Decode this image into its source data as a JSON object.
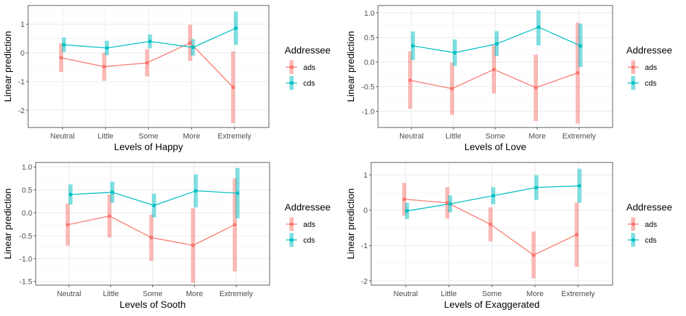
{
  "colors": {
    "ads": "#F8766D",
    "cds": "#00BFC4",
    "panel_border": "#333333",
    "grid_major": "#ebebeb",
    "grid_minor": "#f5f5f5"
  },
  "legend": {
    "title": "Addressee",
    "entries": [
      {
        "key": "ads",
        "label": "ads"
      },
      {
        "key": "cds",
        "label": "cds"
      }
    ]
  },
  "chart_data": [
    {
      "type": "line",
      "xlabel": "Levels of Happy",
      "ylabel": "Linear prediction",
      "categories": [
        "Neutral",
        "Little",
        "Some",
        "More",
        "Extremely"
      ],
      "ylim": [
        -2.6,
        1.65
      ],
      "yticks": [
        -2,
        -1,
        0,
        1
      ],
      "ytick_labels": [
        "-2",
        "-1",
        "0",
        "1"
      ],
      "grid": true,
      "legend_position": "right",
      "series": [
        {
          "name": "ads",
          "values": [
            -0.17,
            -0.48,
            -0.35,
            0.35,
            -1.2
          ],
          "ci_low": [
            -0.67,
            -0.97,
            -0.82,
            -0.28,
            -2.45
          ],
          "ci_high": [
            0.33,
            0.0,
            0.13,
            0.98,
            0.05
          ]
        },
        {
          "name": "cds",
          "values": [
            0.28,
            0.17,
            0.4,
            0.19,
            0.86
          ],
          "ci_low": [
            0.03,
            -0.08,
            0.16,
            -0.1,
            0.28
          ],
          "ci_high": [
            0.53,
            0.42,
            0.64,
            0.48,
            1.44
          ]
        }
      ]
    },
    {
      "type": "line",
      "xlabel": "Levels of Love",
      "ylabel": "Linear prediction",
      "categories": [
        "Neutral",
        "Little",
        "Some",
        "More",
        "Extremely"
      ],
      "ylim": [
        -1.33,
        1.15
      ],
      "yticks": [
        -1.0,
        -0.5,
        0.0,
        0.5,
        1.0
      ],
      "ytick_labels": [
        "-1.0",
        "-0.5",
        "0.0",
        "0.5",
        "1.0"
      ],
      "grid": true,
      "legend_position": "right",
      "series": [
        {
          "name": "ads",
          "values": [
            -0.37,
            -0.54,
            -0.15,
            -0.52,
            -0.22
          ],
          "ci_low": [
            -0.95,
            -1.07,
            -0.64,
            -1.2,
            -1.25
          ],
          "ci_high": [
            0.22,
            -0.01,
            0.34,
            0.15,
            0.8
          ]
        },
        {
          "name": "cds",
          "values": [
            0.33,
            0.19,
            0.37,
            0.71,
            0.33
          ],
          "ci_low": [
            0.04,
            -0.08,
            0.12,
            0.34,
            -0.1
          ],
          "ci_high": [
            0.62,
            0.46,
            0.63,
            1.05,
            0.78
          ]
        }
      ]
    },
    {
      "type": "line",
      "xlabel": "Levels of Sooth",
      "ylabel": "Linear prediction",
      "categories": [
        "Neutral",
        "Little",
        "Some",
        "More",
        "Extremely"
      ],
      "ylim": [
        -1.58,
        1.1
      ],
      "yticks": [
        -1.5,
        -1.0,
        -0.5,
        0.0,
        0.5,
        1.0
      ],
      "ytick_labels": [
        "-1.5",
        "-1.0",
        "-0.5",
        "0.0",
        "0.5",
        "1.0"
      ],
      "grid": true,
      "legend_position": "right",
      "series": [
        {
          "name": "ads",
          "values": [
            -0.26,
            -0.07,
            -0.54,
            -0.71,
            -0.26
          ],
          "ci_low": [
            -0.72,
            -0.54,
            -1.05,
            -1.53,
            -1.28
          ],
          "ci_high": [
            0.2,
            0.4,
            -0.04,
            0.1,
            0.75
          ]
        },
        {
          "name": "cds",
          "values": [
            0.4,
            0.45,
            0.16,
            0.48,
            0.43
          ],
          "ci_low": [
            0.18,
            0.22,
            -0.1,
            0.12,
            -0.12
          ],
          "ci_high": [
            0.62,
            0.68,
            0.42,
            0.84,
            0.98
          ]
        }
      ]
    },
    {
      "type": "line",
      "xlabel": "Levels of Exaggerated",
      "ylabel": "Linear prediction",
      "categories": [
        "Neutral",
        "Little",
        "Some",
        "More",
        "Extremely"
      ],
      "ylim": [
        -2.12,
        1.35
      ],
      "yticks": [
        -2,
        -1,
        0,
        1
      ],
      "ytick_labels": [
        "-2",
        "-1",
        "0",
        "1"
      ],
      "grid": true,
      "legend_position": "right",
      "series": [
        {
          "name": "ads",
          "values": [
            0.31,
            0.21,
            -0.4,
            -1.27,
            -0.69
          ],
          "ci_low": [
            -0.15,
            -0.23,
            -0.88,
            -1.93,
            -1.6
          ],
          "ci_high": [
            0.77,
            0.65,
            0.08,
            -0.6,
            0.22
          ]
        },
        {
          "name": "cds",
          "values": [
            -0.02,
            0.18,
            0.41,
            0.64,
            0.69
          ],
          "ci_low": [
            -0.25,
            -0.06,
            0.17,
            0.29,
            0.21
          ],
          "ci_high": [
            0.21,
            0.42,
            0.65,
            0.99,
            1.17
          ]
        }
      ]
    }
  ]
}
